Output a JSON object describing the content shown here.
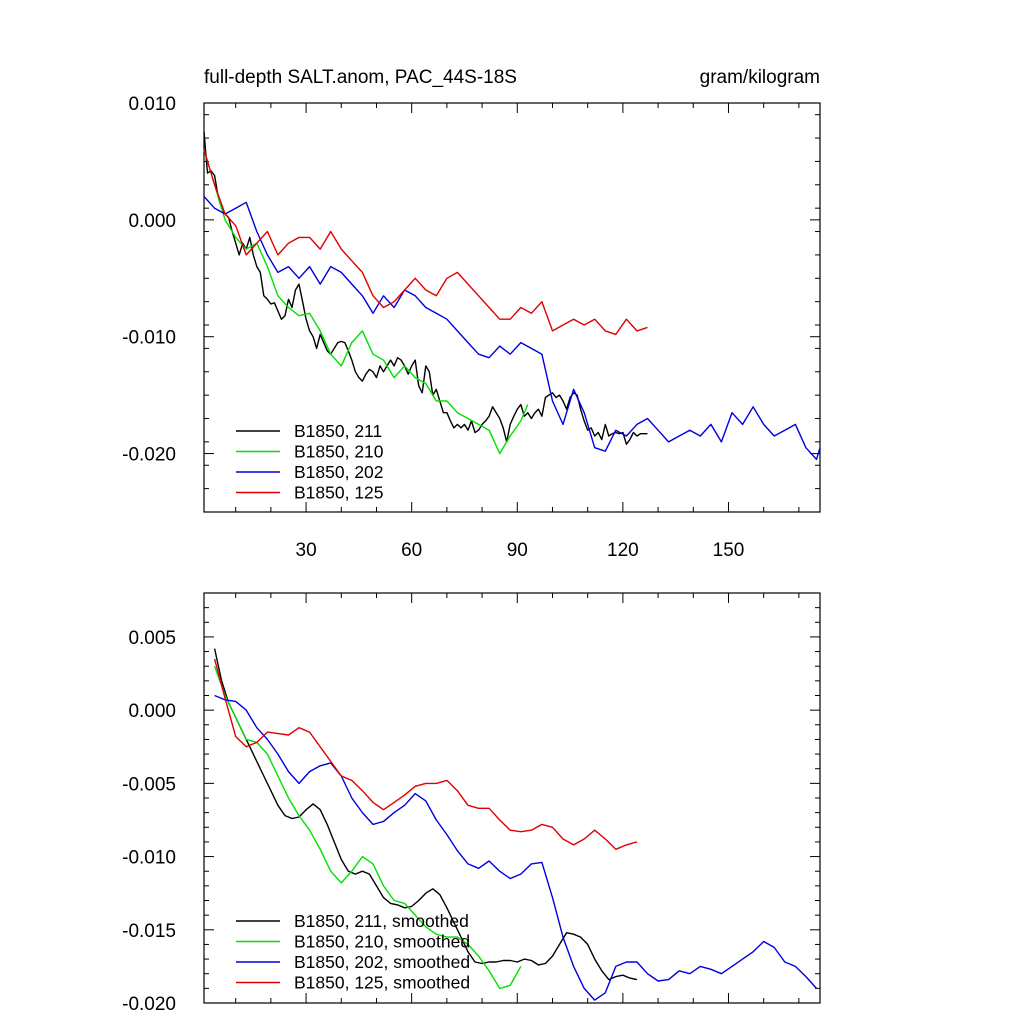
{
  "chart_data": [
    {
      "type": "line",
      "title_left": "full-depth SALT.anom, PAC_44S-18S",
      "title_right": "gram/kilogram",
      "xlim": [
        1,
        176
      ],
      "ylim": [
        -0.025,
        0.01
      ],
      "xticks": [
        30,
        60,
        90,
        120,
        150
      ],
      "xtick_labels": [
        "30",
        "60",
        "90",
        "120",
        "150"
      ],
      "xminor_step": 10,
      "yticks": [
        0.01,
        0.0,
        -0.01,
        -0.02
      ],
      "ytick_labels": [
        "0.010",
        "0.000",
        "-0.010",
        "-0.020"
      ],
      "yminor_step": 0.002,
      "legend": [
        "B1850, 211",
        "B1850, 210",
        "B1850, 202",
        "B1850, 125"
      ],
      "series": [
        {
          "name": "B1850, 211",
          "color": "#000000",
          "x": [
            1,
            2,
            3,
            4,
            5,
            6,
            7,
            8,
            9,
            10,
            11,
            12,
            13,
            14,
            15,
            16,
            17,
            18,
            19,
            20,
            21,
            22,
            23,
            24,
            25,
            26,
            27,
            28,
            29,
            30,
            31,
            32,
            33,
            34,
            35,
            36,
            37,
            38,
            39,
            40,
            41,
            42,
            43,
            44,
            45,
            46,
            47,
            48,
            49,
            50,
            51,
            52,
            53,
            54,
            55,
            56,
            57,
            58,
            59,
            60,
            61,
            62,
            63,
            64,
            65,
            66,
            67,
            68,
            69,
            70,
            71,
            72,
            73,
            74,
            75,
            76,
            77,
            78,
            79,
            80,
            81,
            82,
            83,
            84,
            85,
            86,
            87,
            88,
            89,
            90,
            91,
            92,
            93,
            94,
            95,
            96,
            97,
            98,
            99,
            100,
            101,
            102,
            103,
            104,
            105,
            106,
            107,
            108,
            109,
            110,
            111,
            112,
            113,
            114,
            115,
            116,
            117,
            118,
            119,
            120,
            121,
            122,
            123,
            124,
            125,
            126,
            127
          ],
          "y": [
            0.0075,
            0.004,
            0.0042,
            0.0038,
            0.002,
            0.001,
            0.0005,
            0.0002,
            -0.001,
            -0.002,
            -0.003,
            -0.002,
            -0.0025,
            -0.0015,
            -0.003,
            -0.004,
            -0.0045,
            -0.0065,
            -0.0068,
            -0.0072,
            -0.0071,
            -0.0078,
            -0.0085,
            -0.0082,
            -0.0068,
            -0.0075,
            -0.006,
            -0.0055,
            -0.007,
            -0.0085,
            -0.0095,
            -0.01,
            -0.011,
            -0.0098,
            -0.0105,
            -0.0112,
            -0.0115,
            -0.011,
            -0.0105,
            -0.0104,
            -0.0105,
            -0.0112,
            -0.012,
            -0.013,
            -0.0135,
            -0.0138,
            -0.0132,
            -0.0128,
            -0.013,
            -0.0135,
            -0.0125,
            -0.013,
            -0.0125,
            -0.012,
            -0.0125,
            -0.0118,
            -0.012,
            -0.0125,
            -0.0132,
            -0.0125,
            -0.012,
            -0.0142,
            -0.0148,
            -0.0125,
            -0.013,
            -0.015,
            -0.0145,
            -0.0155,
            -0.0165,
            -0.0165,
            -0.0172,
            -0.0178,
            -0.0175,
            -0.0178,
            -0.0175,
            -0.018,
            -0.0172,
            -0.0182,
            -0.018,
            -0.0175,
            -0.0172,
            -0.0168,
            -0.016,
            -0.0165,
            -0.017,
            -0.0178,
            -0.019,
            -0.0175,
            -0.0168,
            -0.0162,
            -0.0158,
            -0.0168,
            -0.0165,
            -0.017,
            -0.0165,
            -0.0162,
            -0.0168,
            -0.0152,
            -0.015,
            -0.0148,
            -0.0152,
            -0.015,
            -0.0155,
            -0.0162,
            -0.0152,
            -0.0148,
            -0.015,
            -0.0162,
            -0.0172,
            -0.018,
            -0.0178,
            -0.0185,
            -0.0182,
            -0.0188,
            -0.0175,
            -0.0185,
            -0.0183,
            -0.0182,
            -0.0183,
            -0.0182,
            -0.0192,
            -0.0188,
            -0.0182,
            -0.0185,
            -0.0183,
            -0.0183,
            -0.0183
          ]
        },
        {
          "name": "B1850, 210",
          "color": "#00e000",
          "x": [
            1,
            4,
            7,
            10,
            13,
            16,
            19,
            22,
            25,
            28,
            31,
            34,
            37,
            40,
            43,
            46,
            49,
            52,
            55,
            58,
            61,
            64,
            67,
            70,
            73,
            76,
            79,
            82,
            85,
            88,
            91,
            93
          ],
          "y": [
            0.006,
            0.003,
            0.0,
            -0.0015,
            -0.0025,
            -0.002,
            -0.004,
            -0.0065,
            -0.0075,
            -0.0082,
            -0.008,
            -0.0095,
            -0.0115,
            -0.0125,
            -0.0105,
            -0.0095,
            -0.0115,
            -0.012,
            -0.0135,
            -0.0125,
            -0.0135,
            -0.014,
            -0.0155,
            -0.0155,
            -0.0165,
            -0.017,
            -0.0175,
            -0.018,
            -0.02,
            -0.0185,
            -0.0172,
            -0.0158
          ]
        },
        {
          "name": "B1850, 202",
          "color": "#0000e0",
          "x": [
            1,
            4,
            7,
            10,
            13,
            16,
            19,
            22,
            25,
            28,
            31,
            34,
            37,
            40,
            43,
            46,
            49,
            52,
            55,
            58,
            61,
            64,
            67,
            70,
            73,
            76,
            79,
            82,
            85,
            88,
            91,
            94,
            97,
            100,
            103,
            106,
            109,
            112,
            115,
            118,
            121,
            124,
            127,
            130,
            133,
            136,
            139,
            142,
            145,
            148,
            151,
            154,
            157,
            160,
            163,
            166,
            169,
            172,
            175,
            176
          ],
          "y": [
            0.002,
            0.001,
            0.0005,
            0.001,
            0.0015,
            -0.001,
            -0.003,
            -0.0045,
            -0.004,
            -0.005,
            -0.004,
            -0.0055,
            -0.004,
            -0.0045,
            -0.0055,
            -0.0065,
            -0.008,
            -0.0065,
            -0.0075,
            -0.006,
            -0.0065,
            -0.0075,
            -0.008,
            -0.0085,
            -0.0095,
            -0.0105,
            -0.0115,
            -0.0118,
            -0.0108,
            -0.0115,
            -0.0105,
            -0.011,
            -0.0115,
            -0.0155,
            -0.0175,
            -0.0145,
            -0.0165,
            -0.0195,
            -0.0198,
            -0.018,
            -0.0185,
            -0.0175,
            -0.017,
            -0.018,
            -0.019,
            -0.0185,
            -0.018,
            -0.0185,
            -0.0175,
            -0.019,
            -0.0165,
            -0.0175,
            -0.016,
            -0.0175,
            -0.0185,
            -0.018,
            -0.0175,
            -0.0195,
            -0.0205,
            -0.0195
          ]
        },
        {
          "name": "B1850, 125",
          "color": "#e00000",
          "x": [
            1,
            4,
            7,
            10,
            13,
            16,
            19,
            22,
            25,
            28,
            31,
            34,
            37,
            40,
            43,
            46,
            49,
            52,
            55,
            58,
            61,
            64,
            67,
            70,
            73,
            76,
            79,
            82,
            85,
            88,
            91,
            94,
            97,
            100,
            103,
            106,
            109,
            112,
            115,
            118,
            121,
            124,
            127
          ],
          "y": [
            0.006,
            0.003,
            0.0005,
            -0.0005,
            -0.003,
            -0.002,
            -0.001,
            -0.003,
            -0.002,
            -0.0015,
            -0.0015,
            -0.0025,
            -0.001,
            -0.0025,
            -0.0035,
            -0.0045,
            -0.0065,
            -0.0075,
            -0.007,
            -0.006,
            -0.005,
            -0.006,
            -0.0065,
            -0.005,
            -0.0045,
            -0.0055,
            -0.0065,
            -0.0075,
            -0.0085,
            -0.0085,
            -0.0075,
            -0.008,
            -0.007,
            -0.0095,
            -0.009,
            -0.0085,
            -0.009,
            -0.0085,
            -0.0095,
            -0.0098,
            -0.0085,
            -0.0095,
            -0.0092
          ]
        }
      ]
    },
    {
      "type": "line",
      "xlim": [
        1,
        176
      ],
      "ylim": [
        -0.02,
        0.008
      ],
      "xticks": [
        30,
        60,
        90,
        120,
        150
      ],
      "xminor_step": 10,
      "yticks": [
        0.005,
        0.0,
        -0.005,
        -0.01,
        -0.015,
        -0.02
      ],
      "ytick_labels": [
        "0.005",
        "0.000",
        "-0.005",
        "-0.010",
        "-0.015",
        "-0.020"
      ],
      "yminor_step": 0.001,
      "legend": [
        "B1850, 211, smoothed",
        "B1850, 210, smoothed",
        "B1850, 202, smoothed",
        "B1850, 125, smoothed"
      ],
      "series": [
        {
          "name": "B1850, 211, smoothed",
          "color": "#000000",
          "x": [
            4,
            6,
            8,
            10,
            12,
            14,
            16,
            18,
            20,
            22,
            24,
            26,
            28,
            30,
            32,
            34,
            36,
            38,
            40,
            42,
            44,
            46,
            48,
            50,
            52,
            54,
            56,
            58,
            60,
            62,
            64,
            66,
            68,
            70,
            72,
            74,
            76,
            78,
            80,
            82,
            84,
            86,
            88,
            90,
            92,
            94,
            96,
            98,
            100,
            102,
            104,
            106,
            108,
            110,
            112,
            114,
            116,
            118,
            120,
            122,
            124
          ],
          "y": [
            0.0042,
            0.002,
            0.0005,
            -0.0005,
            -0.0015,
            -0.0025,
            -0.0035,
            -0.0045,
            -0.0055,
            -0.0065,
            -0.0072,
            -0.0074,
            -0.0073,
            -0.0068,
            -0.0064,
            -0.0068,
            -0.0078,
            -0.009,
            -0.0102,
            -0.011,
            -0.0112,
            -0.011,
            -0.0112,
            -0.012,
            -0.0128,
            -0.0132,
            -0.0133,
            -0.0135,
            -0.0134,
            -0.013,
            -0.0125,
            -0.0122,
            -0.0126,
            -0.0135,
            -0.0145,
            -0.0155,
            -0.0165,
            -0.0172,
            -0.0173,
            -0.0172,
            -0.0172,
            -0.0171,
            -0.0171,
            -0.0172,
            -0.017,
            -0.0171,
            -0.0174,
            -0.0173,
            -0.0168,
            -0.016,
            -0.0152,
            -0.0153,
            -0.0155,
            -0.016,
            -0.017,
            -0.0178,
            -0.0184,
            -0.0182,
            -0.0181,
            -0.0183,
            -0.0184
          ]
        },
        {
          "name": "B1850, 210, smoothed",
          "color": "#00e000",
          "x": [
            4,
            7,
            10,
            13,
            16,
            19,
            22,
            25,
            28,
            31,
            34,
            37,
            40,
            43,
            46,
            49,
            52,
            55,
            58,
            61,
            64,
            67,
            70,
            73,
            76,
            79,
            82,
            85,
            88,
            91
          ],
          "y": [
            0.003,
            0.001,
            -0.0005,
            -0.002,
            -0.0022,
            -0.003,
            -0.0045,
            -0.006,
            -0.0072,
            -0.0082,
            -0.0095,
            -0.011,
            -0.0118,
            -0.011,
            -0.01,
            -0.0105,
            -0.012,
            -0.013,
            -0.0132,
            -0.014,
            -0.0148,
            -0.0153,
            -0.0155,
            -0.0155,
            -0.016,
            -0.0168,
            -0.0178,
            -0.019,
            -0.0188,
            -0.0175
          ]
        },
        {
          "name": "B1850, 202, smoothed",
          "color": "#0000e0",
          "x": [
            4,
            7,
            10,
            13,
            16,
            19,
            22,
            25,
            28,
            31,
            34,
            37,
            40,
            43,
            46,
            49,
            52,
            55,
            58,
            61,
            64,
            67,
            70,
            73,
            76,
            79,
            82,
            85,
            88,
            91,
            94,
            97,
            100,
            103,
            106,
            109,
            112,
            115,
            118,
            121,
            124,
            127,
            130,
            133,
            136,
            139,
            142,
            145,
            148,
            151,
            154,
            157,
            160,
            163,
            166,
            169,
            172,
            175
          ],
          "y": [
            0.001,
            0.0007,
            0.0006,
            0.0,
            -0.0012,
            -0.002,
            -0.003,
            -0.0042,
            -0.005,
            -0.0042,
            -0.0038,
            -0.0036,
            -0.0045,
            -0.006,
            -0.007,
            -0.0078,
            -0.0076,
            -0.007,
            -0.0065,
            -0.0057,
            -0.0062,
            -0.0075,
            -0.0085,
            -0.0096,
            -0.0105,
            -0.0108,
            -0.0103,
            -0.011,
            -0.0115,
            -0.0112,
            -0.0105,
            -0.0104,
            -0.0128,
            -0.0155,
            -0.0175,
            -0.019,
            -0.0198,
            -0.0193,
            -0.0175,
            -0.0172,
            -0.0172,
            -0.018,
            -0.0185,
            -0.0184,
            -0.0178,
            -0.018,
            -0.0175,
            -0.0177,
            -0.018,
            -0.0175,
            -0.017,
            -0.0165,
            -0.0158,
            -0.0162,
            -0.0172,
            -0.0175,
            -0.0182,
            -0.019
          ]
        },
        {
          "name": "B1850, 125, smoothed",
          "color": "#e00000",
          "x": [
            4,
            7,
            10,
            13,
            16,
            19,
            22,
            25,
            28,
            31,
            34,
            37,
            40,
            43,
            46,
            49,
            52,
            55,
            58,
            61,
            64,
            67,
            70,
            73,
            76,
            79,
            82,
            85,
            88,
            91,
            94,
            97,
            100,
            103,
            106,
            109,
            112,
            115,
            118,
            121,
            124
          ],
          "y": [
            0.0035,
            0.0008,
            -0.0018,
            -0.0025,
            -0.0022,
            -0.0015,
            -0.0016,
            -0.0017,
            -0.0012,
            -0.0015,
            -0.0025,
            -0.0035,
            -0.0045,
            -0.0048,
            -0.0055,
            -0.0063,
            -0.0068,
            -0.0063,
            -0.0058,
            -0.0052,
            -0.005,
            -0.005,
            -0.0048,
            -0.0055,
            -0.0065,
            -0.0067,
            -0.0067,
            -0.0075,
            -0.0082,
            -0.0083,
            -0.0082,
            -0.0078,
            -0.008,
            -0.0088,
            -0.0092,
            -0.0088,
            -0.0082,
            -0.0088,
            -0.0095,
            -0.0092,
            -0.009
          ]
        }
      ]
    }
  ]
}
